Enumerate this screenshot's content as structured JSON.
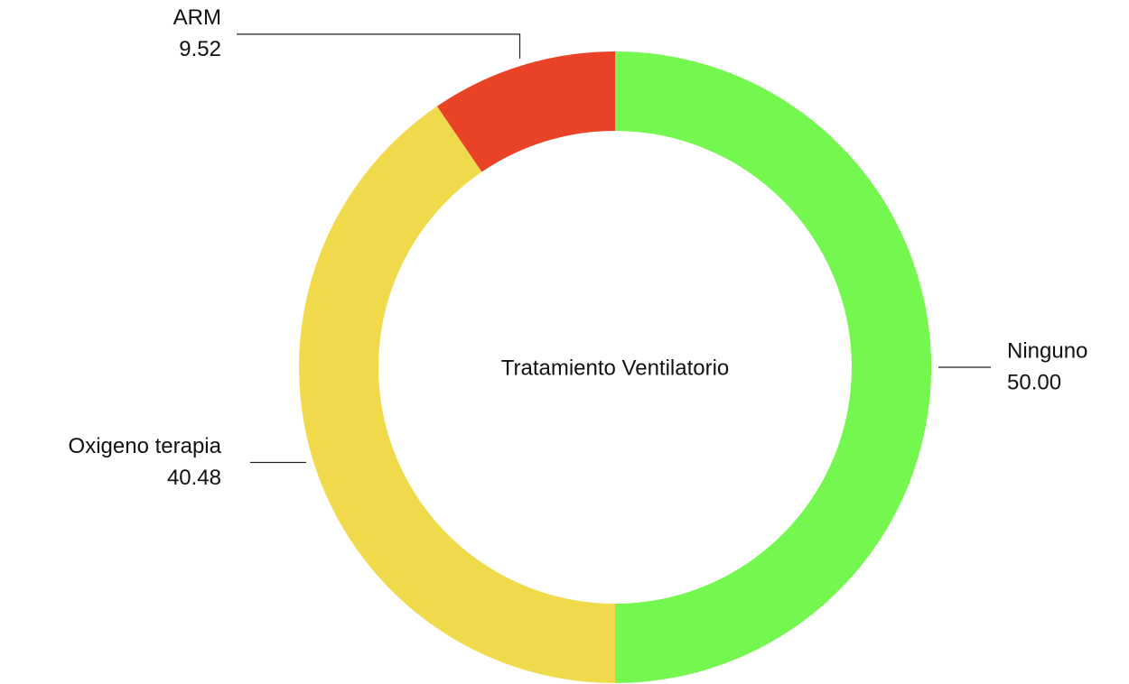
{
  "chart_data": {
    "type": "donut",
    "title": "Tratamiento Ventilatorio",
    "categories": [
      "Ninguno",
      "Oxigeno terapia",
      "ARM"
    ],
    "values": [
      50.0,
      40.48,
      9.52
    ],
    "value_labels": [
      "50.00",
      "40.48",
      "9.52"
    ],
    "colors": [
      "#74f74e",
      "#f0da4c",
      "#ea4227"
    ]
  }
}
